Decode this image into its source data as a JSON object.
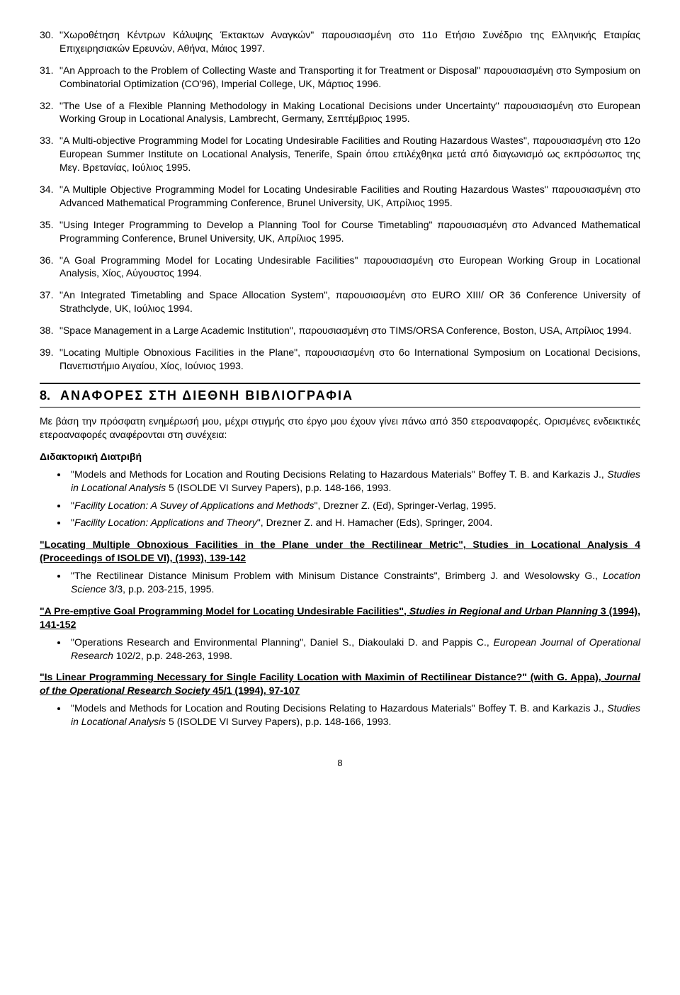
{
  "items": [
    {
      "n": "30.",
      "text": "\"Χωροθέτηση Κέντρων Κάλυψης Έκτακτων Αναγκών\" παρουσιασμένη στο 11ο Ετήσιο Συνέδριο της Ελληνικής Εταιρίας Επιχειρησιακών Ερευνών, Αθήνα, Μάιος 1997."
    },
    {
      "n": "31.",
      "text": "\"An Approach to the Problem of Collecting Waste and Transporting it for Treatment or Disposal\" παρουσιασμένη στο Symposium on Combinatorial Optimization (CO'96), Imperial College, UK, Μάρτιος 1996."
    },
    {
      "n": "32.",
      "text": "\"The Use of a Flexible Planning Methodology in Making Locational Decisions under Uncertainty\" παρουσιασμένη στο European Working Group in Locational Analysis, Lambrecht, Germany, Σεπτέμβριος 1995."
    },
    {
      "n": "33.",
      "text": "\"A Multi-objective Programming Model for Locating Undesirable Facilities and Routing Hazardous Wastes\", παρουσιασμένη στο 12ο European Summer Institute on Locational Analysis, Tenerife, Spain όπου επιλέχθηκα μετά από διαγωνισμό ως εκπρόσωπος της Μεγ. Βρετανίας, Ιούλιος 1995."
    },
    {
      "n": "34.",
      "text": "\"A Multiple Objective Programming Model for Locating Undesirable Facilities and Routing Hazardous Wastes\" παρουσιασμένη στο Advanced Mathematical Programming Conference, Brunel University, UK, Απρίλιος 1995."
    },
    {
      "n": "35.",
      "text": "\"Using Integer Programming to Develop a Planning Tool for Course Timetabling\" παρουσιασμένη στο Advanced Mathematical Programming Conference, Brunel University, UK, Απρίλιος 1995."
    },
    {
      "n": "36.",
      "text": "\"A Goal Programming Model for Locating Undesirable Facilities\" παρουσιασμένη στο European Working Group in Locational Analysis, Χίος, Αύγουστος 1994."
    },
    {
      "n": "37.",
      "text": "\"An Integrated Timetabling and Space Allocation System\", παρουσιασμένη στο EURO XIII/ OR 36 Conference University of Strathclyde, UK, Ιούλιος 1994."
    },
    {
      "n": "38.",
      "text": "\"Space Management in a Large Academic Institution\", παρουσιασμένη στο TIMS/ORSA Conference, Boston, USA, Απρίλιος 1994."
    },
    {
      "n": "39.",
      "text": "\"Locating Multiple Obnoxious Facilities in the Plane\", παρουσιασμένη στο 6ο International Symposium on Locational Decisions, Πανεπιστήμιο Αιγαίου, Χίος, Ιούνιος 1993."
    }
  ],
  "section": {
    "num": "8.",
    "title": "ΑΝΑΦΟΡΕΣ ΣΤΗ ΔΙΕΘΝΗ ΒΙΒΛΙΟΓΡΑΦΙΑ"
  },
  "intro": "Με βάση την πρόσφατη ενημέρωσή μου, μέχρι στιγμής στο έργο μου έχουν γίνει πάνω από 350 ετεροαναφορές. Ορισμένες ενδεικτικές ετεροαναφορές αναφέρονται στη συνέχεια:",
  "sub1": "Διδακτορική Διατριβή",
  "b1": [
    "\"Models and Methods for Location and Routing Decisions Relating to Hazardous Materials\" Boffey T. B. and Karkazis J., <i>Studies in Locational Analysis</i> 5 (ISOLDE VI Survey Papers), p.p. 148-166, 1993.",
    "\"<i>Facility Location: A Suvey of Applications and Methods</i>\", Drezner Z. (Ed), Springer-Verlag, 1995.",
    "\"<i>Facility Location: Applications and Theory</i>\", Drezner Z. and H. Hamacher (Eds), Springer, 2004."
  ],
  "sub2": "\"Locating Multiple Obnoxious Facilities in the Plane under the Rectilinear Metric\", Studies in Locational Analysis 4 (Proceedings of ISOLDE VI), (1993), 139-142",
  "b2": [
    "\"The Rectilinear Distance Minisum Problem with Minisum Distance Constraints\", Brimberg J. and Wesolowsky G., <i>Location Science</i> 3/3, p.p. 203-215, 1995."
  ],
  "sub3": "\"A Pre-emptive Goal Programming Model for Locating Undesirable Facilities\", <i>Studies in Regional and Urban Planning</i> 3 (1994), 141-152",
  "b3": [
    "\"Operations Research and Environmental Planning\", Daniel S., Diakoulaki D. and Pappis C., <i>European Journal of Operational Research</i> 102/2, p.p. 248-263, 1998."
  ],
  "sub4": "\"Is Linear Programming Necessary for Single Facility Location with Maximin of Rectilinear Distance?\" (with G. Appa), <i>Journal of the Operational Research Society</i> 45/1 (1994), 97-107",
  "b4": [
    "\"Models and Methods for Location and Routing Decisions Relating to Hazardous Materials\" Boffey T. B. and Karkazis J., <i>Studies in Locational Analysis</i> 5 (ISOLDE VI Survey Papers), p.p. 148-166, 1993."
  ],
  "page": "8"
}
